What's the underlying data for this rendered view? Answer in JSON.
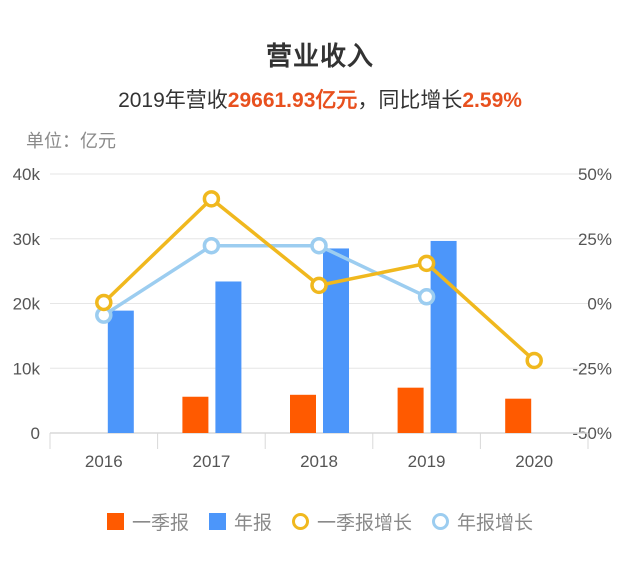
{
  "header": {
    "title": "营业收入",
    "subtitle_prefix": "2019年营收",
    "subtitle_value": "29661.93亿元",
    "subtitle_mid": "，同比增长",
    "subtitle_growth": "2.59%",
    "unit_label": "单位：亿元"
  },
  "colors": {
    "q1_bar": "#ff5a00",
    "annual_bar": "#4c96fa",
    "q1_growth_line": "#f0b81e",
    "annual_growth_line": "#9ccdf0",
    "highlight_text": "#e8501e"
  },
  "legend": [
    {
      "label": "一季报",
      "shape": "square",
      "color": "#ff5a00"
    },
    {
      "label": "年报",
      "shape": "square",
      "color": "#4c96fa"
    },
    {
      "label": "一季报增长",
      "shape": "circle",
      "color": "#f0b81e"
    },
    {
      "label": "年报增长",
      "shape": "circle",
      "color": "#9ccdf0"
    }
  ],
  "chart_data": {
    "type": "bar",
    "title": "营业收入",
    "subtitle": "2019年营收29661.93亿元，同比增长2.59%",
    "xlabel": "",
    "ylabel": "亿元",
    "y2label": "%",
    "categories": [
      "2016",
      "2017",
      "2018",
      "2019",
      "2020"
    ],
    "ylim": [
      0,
      40000
    ],
    "y_ticks": [
      "0",
      "10k",
      "20k",
      "30k",
      "40k"
    ],
    "y2lim": [
      -50,
      50
    ],
    "y2_ticks": [
      "-50%",
      "-25%",
      "0%",
      "25%",
      "50%"
    ],
    "grid": true,
    "legend_position": "bottom",
    "series": [
      {
        "name": "一季报",
        "type": "bar",
        "axis": "left",
        "values": [
          null,
          5600,
          5900,
          7000,
          5300
        ]
      },
      {
        "name": "年报",
        "type": "bar",
        "axis": "left",
        "values": [
          18900,
          23400,
          28500,
          29661.93,
          null
        ]
      },
      {
        "name": "一季报增长",
        "type": "line",
        "axis": "right",
        "values": [
          0.4,
          40.4,
          7.0,
          15.5,
          -22.0
        ]
      },
      {
        "name": "年报增长",
        "type": "line",
        "axis": "right",
        "values": [
          -4.5,
          22.3,
          22.3,
          2.59,
          null
        ]
      }
    ]
  }
}
